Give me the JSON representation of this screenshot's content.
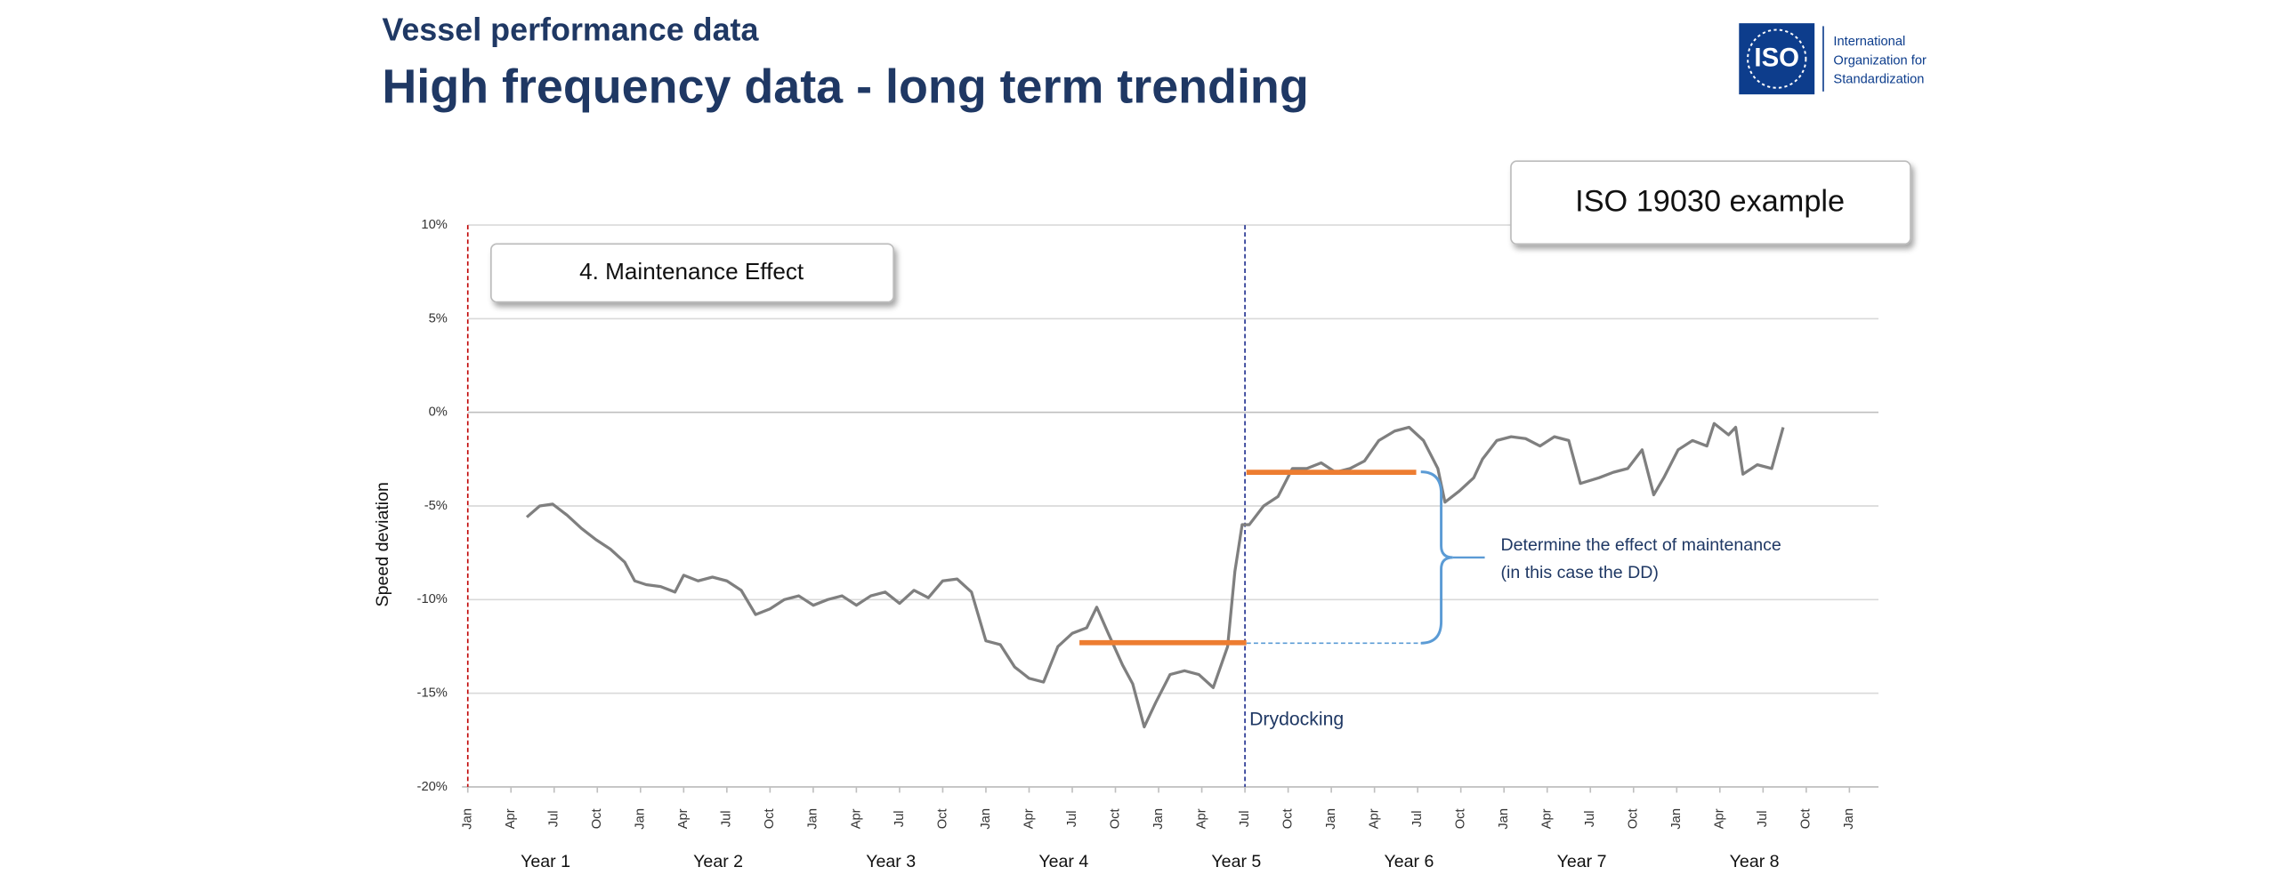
{
  "header": {
    "subtitle": "Vessel performance data",
    "title": "High frequency data - long term trending"
  },
  "logo": {
    "mark": "ISO",
    "lines": [
      "International",
      "Organization for",
      "Standardization"
    ]
  },
  "chart_data": {
    "type": "line",
    "y_label": "Speed deviation",
    "x": [
      4.1,
      5,
      5.9,
      6.9,
      7.9,
      8.9,
      9.9,
      10.9,
      11.6,
      12.4,
      13.4,
      14.4,
      15,
      16,
      17,
      18,
      19,
      20,
      21,
      22,
      23,
      24,
      25,
      26,
      27,
      28,
      29,
      30,
      31,
      32,
      33,
      34,
      35,
      36,
      37,
      38,
      39,
      40,
      41,
      42,
      43,
      43.7,
      44.5,
      45.5,
      46.2,
      47,
      47.8,
      48.8,
      49.8,
      50.8,
      51.8,
      52.8,
      53.3,
      53.8,
      54.3,
      55.3,
      56.3,
      57.3,
      58.3,
      59.3,
      60.3,
      61.3,
      62.3,
      63.3,
      64.4,
      65.4,
      66.4,
      67.4,
      67.9,
      68.9,
      69.9,
      70.5,
      71.5,
      72.5,
      73.5,
      74.5,
      75.5,
      76.5,
      77.3,
      78.6,
      79.6,
      80.6,
      81.6,
      82.4,
      83.1,
      84.1,
      85.1,
      86.1,
      86.6,
      87.6,
      88.1,
      88.6,
      89.6,
      90.6,
      91.4
    ],
    "values": [
      -5.6,
      -5.0,
      -4.9,
      -5.5,
      -6.2,
      -6.8,
      -7.3,
      -8.0,
      -9.0,
      -9.2,
      -9.3,
      -9.6,
      -8.7,
      -9.0,
      -8.8,
      -9.0,
      -9.5,
      -10.8,
      -10.5,
      -10.0,
      -9.8,
      -10.3,
      -10.0,
      -9.8,
      -10.3,
      -9.8,
      -9.6,
      -10.2,
      -9.5,
      -9.9,
      -9.0,
      -8.9,
      -9.6,
      -12.2,
      -12.4,
      -13.6,
      -14.2,
      -14.4,
      -12.5,
      -11.8,
      -11.5,
      -10.4,
      -11.8,
      -13.5,
      -14.5,
      -16.8,
      -15.5,
      -14.0,
      -13.8,
      -14.0,
      -14.7,
      -12.5,
      -8.5,
      -6.0,
      -6.0,
      -5.0,
      -4.5,
      -3.0,
      -3.0,
      -2.7,
      -3.2,
      -3.0,
      -2.6,
      -1.5,
      -1.0,
      -0.8,
      -1.5,
      -3.0,
      -4.8,
      -4.2,
      -3.5,
      -2.5,
      -1.5,
      -1.3,
      -1.4,
      -1.8,
      -1.3,
      -1.5,
      -3.8,
      -3.5,
      -3.2,
      -3.0,
      -2.0,
      -4.4,
      -3.5,
      -2.0,
      -1.5,
      -1.8,
      -0.6,
      -1.2,
      -0.8,
      -3.3,
      -2.8,
      -3.0,
      -0.8
    ],
    "color": "#7f7f7f",
    "xlim": [
      0,
      96
    ],
    "xticks": [
      {
        "value": 0,
        "label": "Jan"
      },
      {
        "value": 3,
        "label": "Apr"
      },
      {
        "value": 6,
        "label": "Jul"
      },
      {
        "value": 9,
        "label": "Oct"
      },
      {
        "value": 12,
        "label": "Jan"
      },
      {
        "value": 15,
        "label": "Apr"
      },
      {
        "value": 18,
        "label": "Jul"
      },
      {
        "value": 21,
        "label": "Oct"
      },
      {
        "value": 24,
        "label": "Jan"
      },
      {
        "value": 27,
        "label": "Apr"
      },
      {
        "value": 30,
        "label": "Jul"
      },
      {
        "value": 33,
        "label": "Oct"
      },
      {
        "value": 36,
        "label": "Jan"
      },
      {
        "value": 39,
        "label": "Apr"
      },
      {
        "value": 42,
        "label": "Jul"
      },
      {
        "value": 45,
        "label": "Oct"
      },
      {
        "value": 48,
        "label": "Jan"
      },
      {
        "value": 51,
        "label": "Apr"
      },
      {
        "value": 54,
        "label": "Jul"
      },
      {
        "value": 57,
        "label": "Oct"
      },
      {
        "value": 60,
        "label": "Jan"
      },
      {
        "value": 63,
        "label": "Apr"
      },
      {
        "value": 66,
        "label": "Jul"
      },
      {
        "value": 69,
        "label": "Oct"
      },
      {
        "value": 72,
        "label": "Jan"
      },
      {
        "value": 75,
        "label": "Apr"
      },
      {
        "value": 78,
        "label": "Jul"
      },
      {
        "value": 81,
        "label": "Oct"
      },
      {
        "value": 84,
        "label": "Jan"
      },
      {
        "value": 87,
        "label": "Apr"
      },
      {
        "value": 90,
        "label": "Jul"
      },
      {
        "value": 93,
        "label": "Oct"
      },
      {
        "value": 96,
        "label": "Jan"
      }
    ],
    "year_labels": [
      "Year 1",
      "Year 2",
      "Year 3",
      "Year 4",
      "Year 5",
      "Year 6",
      "Year 7",
      "Year 8"
    ],
    "ylim": [
      -20,
      10
    ],
    "yticks": [
      {
        "value": 10,
        "label": "10%"
      },
      {
        "value": 5,
        "label": "5%"
      },
      {
        "value": 0,
        "label": "0%"
      },
      {
        "value": -5,
        "label": "-5%"
      },
      {
        "value": -10,
        "label": "-10%"
      },
      {
        "value": -15,
        "label": "-15%"
      },
      {
        "value": -20,
        "label": "-20%"
      }
    ],
    "grid": true,
    "levels": [
      {
        "x": [
          42.5,
          54.1
        ],
        "value": -12.3,
        "color": "#ed7d31"
      },
      {
        "x": [
          54.1,
          65.9
        ],
        "value": -3.2,
        "color": "#ed7d31"
      }
    ],
    "markers": [
      {
        "x": 0,
        "color": "#c00000"
      },
      {
        "x": 54,
        "color": "#1f2f8f"
      }
    ],
    "annotations": {
      "badge": "ISO 19030 example",
      "panel": "4. Maintenance Effect",
      "drydock": "Drydocking",
      "note": [
        "Determine the effect of maintenance",
        "(in this case the DD)"
      ]
    }
  }
}
